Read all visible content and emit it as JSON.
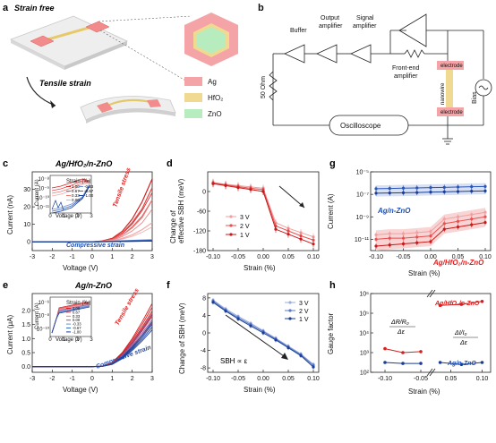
{
  "panel_labels": {
    "a": "a",
    "b": "b",
    "c": "c",
    "d": "d",
    "e": "e",
    "f": "f",
    "g": "g",
    "h": "h"
  },
  "panel_a": {
    "strain_free_label": "Strain free",
    "tensile_strain_label": "Tensile strain",
    "legend": [
      {
        "label": "Ag",
        "color": "#f4a3a6"
      },
      {
        "label": "HfO₂",
        "color": "#f0d990"
      },
      {
        "label": "ZnO",
        "color": "#b7ecbf"
      }
    ],
    "colors": {
      "outer_hex": "#f9b5a7",
      "inner_hex": "#b7ecbf",
      "mid_hex": "#f0d990",
      "device": "#e23a3a",
      "film": "#e3c867"
    }
  },
  "panel_b": {
    "buffer": "Buffer",
    "output_amplifier": "Output\namplifier",
    "signal_amplifier": "Signal\namplifier",
    "frontend_amplifier": "Front-end\namplifier",
    "resistor": "50 Ohm",
    "electrode_top": "electrode",
    "electrode_bottom": "electrode",
    "nanowire": "nanowire",
    "bias": "Bias",
    "oscilloscope": "Oscilloscope"
  },
  "chart_data": [
    {
      "id": "c",
      "type": "line",
      "title": "Ag/HfO₂/n-ZnO",
      "xlabel": "Voltage (V)",
      "ylabel": "Current (nA)",
      "xlim": [
        -3,
        3
      ],
      "ylim": [
        -5,
        40
      ],
      "xticks": [
        "-3",
        "-2",
        "-1",
        "0",
        "1",
        "2",
        "3"
      ],
      "yticks": [
        "0",
        "10",
        "20",
        "30"
      ],
      "annotations": [
        "Tensile stress",
        "Compressive strain"
      ],
      "series": [
        {
          "name": "1.00",
          "x": [
            -3,
            -1,
            0,
            0.5,
            1,
            1.5,
            2,
            2.5,
            3
          ],
          "values": [
            0,
            0,
            0,
            0.5,
            2,
            6,
            13,
            23,
            36
          ]
        },
        {
          "name": "0.67",
          "x": [
            -3,
            -1,
            0,
            0.5,
            1,
            1.5,
            2,
            2.5,
            3
          ],
          "values": [
            0,
            0,
            0,
            0.4,
            1.6,
            5,
            11,
            19,
            31
          ]
        },
        {
          "name": "0.33",
          "x": [
            -3,
            -1,
            0,
            0.5,
            1,
            1.5,
            2,
            2.5,
            3
          ],
          "values": [
            0,
            0,
            0,
            0.3,
            1.2,
            3.8,
            8,
            14,
            24
          ]
        },
        {
          "name": "0.00",
          "x": [
            -3,
            -1,
            0,
            0.5,
            1,
            1.5,
            2,
            2.5,
            3
          ],
          "values": [
            0,
            0,
            0,
            0.2,
            0.8,
            2,
            4,
            7,
            11
          ]
        },
        {
          "name": "-0.33",
          "x": [
            -3,
            0,
            3
          ],
          "values": [
            0,
            0,
            1.2
          ]
        },
        {
          "name": "-0.67",
          "x": [
            -3,
            0,
            3
          ],
          "values": [
            0,
            0,
            0.8
          ]
        },
        {
          "name": "-1.00",
          "x": [
            -3,
            0,
            3
          ],
          "values": [
            0,
            0,
            0.5
          ]
        }
      ],
      "inset": {
        "ylabel": "Current (A)",
        "xlabel": "Voltage (V)",
        "yticks": [
          "10⁻⁸",
          "10⁻⁹",
          "10⁻¹⁰",
          "10⁻¹¹"
        ],
        "xticks": [
          "0",
          "1",
          "2",
          "3"
        ],
        "legend_title": "Strain (‰)",
        "legend": [
          "1.00",
          "0.67",
          "0.33",
          "0.00",
          "-0.33",
          "-0.67",
          "-1.00"
        ]
      }
    },
    {
      "id": "d",
      "type": "line",
      "xlabel": "Strain (%)",
      "ylabel": "Change of\neffective SBH (meV)",
      "xlim": [
        -0.1,
        0.1
      ],
      "ylim": [
        -180,
        60
      ],
      "xticks": [
        "-0.10",
        "-0.05",
        "0.00",
        "0.05",
        "0.10"
      ],
      "yticks": [
        "-180",
        "-120",
        "-60",
        "0"
      ],
      "x": [
        -0.1,
        -0.075,
        -0.05,
        -0.025,
        0,
        0.025,
        0.05,
        0.075,
        0.1
      ],
      "series": [
        {
          "name": "3 V",
          "values": [
            28,
            22,
            18,
            14,
            10,
            -95,
            -112,
            -125,
            -138
          ]
        },
        {
          "name": "2 V",
          "values": [
            26,
            20,
            15,
            10,
            6,
            -105,
            -120,
            -135,
            -148
          ]
        },
        {
          "name": "1 V",
          "values": [
            24,
            18,
            12,
            6,
            0,
            -115,
            -130,
            -145,
            -160
          ]
        }
      ]
    },
    {
      "id": "e",
      "type": "line",
      "title": "Ag/n-ZnO",
      "xlabel": "Voltage (V)",
      "ylabel": "Current (μA)",
      "xlim": [
        -3,
        3
      ],
      "ylim": [
        -0.2,
        2.6
      ],
      "xticks": [
        "-3",
        "-2",
        "-1",
        "0",
        "1",
        "2",
        "3"
      ],
      "yticks": [
        "0.0",
        "0.5",
        "1.0",
        "1.5",
        "2.0"
      ],
      "annotations": [
        "Tensile stress",
        "Compressive strain"
      ],
      "series": [
        {
          "name": "1.00",
          "x": [
            -3,
            -1,
            0,
            0.5,
            1,
            1.5,
            2,
            2.5,
            3
          ],
          "values": [
            0,
            0,
            0,
            0.02,
            0.15,
            0.5,
            1.0,
            1.6,
            2.25
          ]
        },
        {
          "name": "0.00",
          "x": [
            -3,
            -1,
            0,
            0.5,
            1,
            1.5,
            2,
            2.5,
            3
          ],
          "values": [
            0,
            0,
            0,
            0.02,
            0.12,
            0.42,
            0.85,
            1.35,
            1.9
          ]
        },
        {
          "name": "-1.00",
          "x": [
            -3,
            -1,
            0,
            0.5,
            1,
            1.5,
            2,
            2.5,
            3
          ],
          "values": [
            0,
            0,
            0,
            0.01,
            0.1,
            0.35,
            0.7,
            1.12,
            1.6
          ]
        }
      ],
      "inset": {
        "ylabel": "Current (A)",
        "xlabel": "Voltage (V)",
        "yticks": [
          "10⁻⁶",
          "10⁻⁸",
          "10⁻¹⁰"
        ],
        "xticks": [
          "0",
          "1",
          "2",
          "3"
        ],
        "legend_title": "Strain (‰)",
        "legend": [
          "1.00",
          "0.67",
          "0.33",
          "0.00",
          "-0.33",
          "-0.67",
          "-1.00"
        ]
      }
    },
    {
      "id": "f",
      "type": "line",
      "xlabel": "Strain (%)",
      "ylabel": "Change of SBH (meV)",
      "xlim": [
        -0.1,
        0.1
      ],
      "ylim": [
        -9,
        9
      ],
      "xticks": [
        "-0.10",
        "-0.05",
        "0.00",
        "0.05",
        "0.10"
      ],
      "yticks": [
        "-8",
        "-4",
        "0",
        "4",
        "8"
      ],
      "annotation": "SBH ∝ ε",
      "x": [
        -0.1,
        -0.075,
        -0.05,
        -0.025,
        0,
        0.025,
        0.05,
        0.075,
        0.1
      ],
      "series": [
        {
          "name": "3 V",
          "values": [
            7.5,
            5.5,
            3.8,
            2.2,
            0.5,
            -1.2,
            -3.0,
            -4.8,
            -7.2
          ]
        },
        {
          "name": "2 V",
          "values": [
            7.3,
            5.2,
            3.5,
            1.9,
            0.3,
            -1.4,
            -3.2,
            -5.0,
            -7.4
          ]
        },
        {
          "name": "1 V",
          "values": [
            7.0,
            5.0,
            3.2,
            1.6,
            0,
            -1.6,
            -3.4,
            -5.2,
            -7.8
          ]
        }
      ]
    },
    {
      "id": "g",
      "type": "line",
      "xlabel": "Strain (%)",
      "ylabel": "Current (A)",
      "ylog": true,
      "xlim": [
        -0.1,
        0.1
      ],
      "ylim_exp": [
        -12,
        -5
      ],
      "xticks": [
        "-0.10",
        "-0.05",
        "0.00",
        "0.05",
        "0.10"
      ],
      "yticks": [
        "10⁻¹¹",
        "10⁻⁹",
        "10⁻⁷",
        "10⁻⁵"
      ],
      "x": [
        -0.1,
        -0.075,
        -0.05,
        -0.025,
        0,
        0.025,
        0.05,
        0.075,
        0.1
      ],
      "labels": [
        "Ag/n-ZnO",
        "Ag/HfO₂/n-ZnO"
      ],
      "series": [
        {
          "name": "Ag/n-ZnO 3 V",
          "log10": [
            -6.5,
            -6.48,
            -6.45,
            -6.43,
            -6.4,
            -6.38,
            -6.35,
            -6.32,
            -6.3
          ]
        },
        {
          "name": "Ag/n-ZnO 1 V",
          "log10": [
            -6.9,
            -6.88,
            -6.86,
            -6.84,
            -6.8,
            -6.78,
            -6.75,
            -6.72,
            -6.7
          ]
        },
        {
          "name": "Ag/HfO₂/n-ZnO 3 V",
          "log10": [
            -10.6,
            -10.5,
            -10.5,
            -10.4,
            -10.3,
            -9.2,
            -9.0,
            -8.8,
            -8.6
          ]
        },
        {
          "name": "Ag/HfO₂/n-ZnO 2 V",
          "log10": [
            -11.0,
            -10.9,
            -10.9,
            -10.8,
            -10.7,
            -9.6,
            -9.4,
            -9.2,
            -9.0
          ]
        },
        {
          "name": "Ag/HfO₂/n-ZnO 1 V",
          "log10": [
            -11.6,
            -11.5,
            -11.4,
            -11.3,
            -11.2,
            -10.1,
            -9.9,
            -9.7,
            -9.5
          ]
        }
      ]
    },
    {
      "id": "h",
      "type": "line",
      "xlabel": "Strain (%)",
      "ylabel": "Gauge factor",
      "ylog": true,
      "xlim": [
        -0.1,
        0.1
      ],
      "ylim_exp": [
        2,
        6
      ],
      "xticks": [
        "-0.10",
        "-0.05",
        "0.05",
        "0.10"
      ],
      "yticks": [
        "10²",
        "10³",
        "10⁴",
        "10⁵",
        "10⁶"
      ],
      "labels": [
        "Ag/HfO₂/n-ZnO",
        "Ag/n-ZnO"
      ],
      "formula_left_num": "ΔR/R₀",
      "formula_left_den": "Δε",
      "formula_right_num": "ΔI/I₀",
      "formula_right_den": "Δε",
      "series": [
        {
          "name": "Ag/HfO₂/n-ZnO left",
          "x": [
            -0.1,
            -0.075,
            -0.05
          ],
          "log10": [
            3.2,
            3.0,
            3.05
          ]
        },
        {
          "name": "Ag/n-ZnO left",
          "x": [
            -0.1,
            -0.075,
            -0.05
          ],
          "log10": [
            2.5,
            2.45,
            2.45
          ]
        },
        {
          "name": "Ag/HfO₂/n-ZnO right",
          "x": [
            0.033,
            0.067,
            0.1
          ],
          "log10": [
            5.4,
            5.45,
            5.6
          ]
        },
        {
          "name": "Ag/n-ZnO right",
          "x": [
            0.033,
            0.067,
            0.1
          ],
          "log10": [
            2.5,
            2.4,
            2.5
          ]
        }
      ]
    }
  ]
}
